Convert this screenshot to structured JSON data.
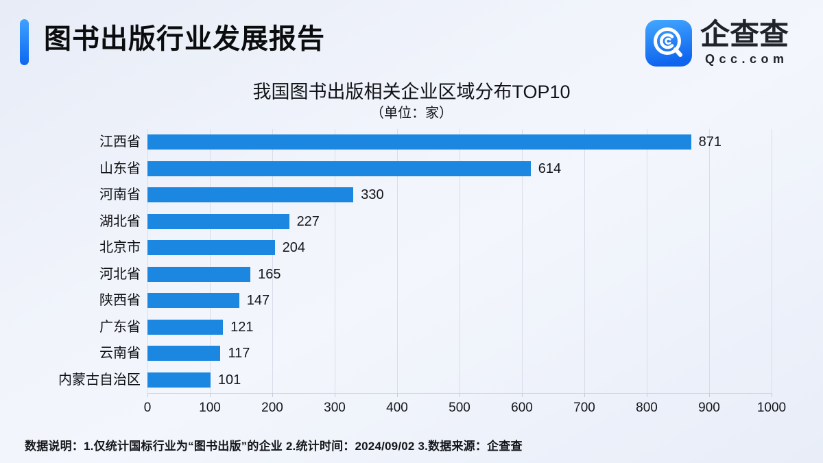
{
  "header": {
    "title": "图书出版行业发展报告"
  },
  "logo": {
    "name": "企查查",
    "domain": "Qcc.com",
    "icon": "qcc-magnifier-icon"
  },
  "chart_data": {
    "type": "bar",
    "orientation": "horizontal",
    "title": "我国图书出版相关企业区域分布TOP10",
    "subtitle": "（单位：家）",
    "unit": "家",
    "categories": [
      "江西省",
      "山东省",
      "河南省",
      "湖北省",
      "北京市",
      "河北省",
      "陕西省",
      "广东省",
      "云南省",
      "内蒙古自治区"
    ],
    "values": [
      871,
      614,
      330,
      227,
      204,
      165,
      147,
      121,
      117,
      101
    ],
    "xlim": [
      0,
      1000
    ],
    "x_ticks": [
      0,
      100,
      200,
      300,
      400,
      500,
      600,
      700,
      800,
      900,
      1000
    ],
    "grid": true,
    "legend_position": "none"
  },
  "footer": {
    "note": "数据说明：1.仅统计国标行业为“图书出版”的企业  2.统计时间：2024/09/02   3.数据来源：企查查"
  },
  "colors": {
    "bar": "#1b87e0",
    "grid": "#d8dde8",
    "accent-top": "#3fa2ff",
    "accent-bottom": "#0c67f0",
    "logo-top": "#44a8ff",
    "logo-bottom": "#0e64ee",
    "text": "#121418"
  }
}
